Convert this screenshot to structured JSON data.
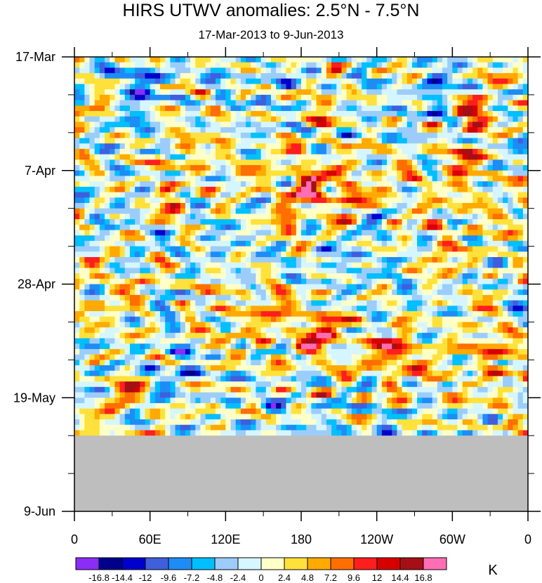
{
  "chart_data": {
    "type": "heatmap",
    "title": "HIRS UTWV anomalies: 2.5°N - 7.5°N",
    "subtitle": "17-Mar-2013 to 9-Jun-2013",
    "x_ticks": [
      "0",
      "60E",
      "120E",
      "180",
      "120W",
      "60W",
      "0"
    ],
    "x_tick_values": [
      0,
      60,
      120,
      180,
      240,
      300,
      360
    ],
    "x_range": [
      0,
      360
    ],
    "y_ticks": [
      "17-Mar",
      "7-Apr",
      "28-Apr",
      "19-May",
      "9-Jun"
    ],
    "y_tick_days": [
      0,
      21,
      42,
      63,
      84
    ],
    "y_range_days": [
      0,
      84
    ],
    "y_start_label": "17-Mar",
    "missing_data_color": "#bebebe",
    "missing_from_day": 70,
    "colorbar": {
      "unit": "K",
      "labels": [
        "-16.8",
        "-14.4",
        "-12",
        "-9.6",
        "-7.2",
        "-4.8",
        "-2.4",
        "0",
        "2.4",
        "4.8",
        "7.2",
        "9.6",
        "12",
        "14.4",
        "16.8"
      ],
      "colors": [
        "#8c2df7",
        "#00008c",
        "#0000cd",
        "#3f5fdc",
        "#1e8cf5",
        "#00bfff",
        "#9ccdfa",
        "#d6f6ff",
        "#ffffc8",
        "#ffe13c",
        "#ffaa00",
        "#ff6e00",
        "#ff1e1e",
        "#d70000",
        "#a50f15",
        "#ff6eb4"
      ]
    },
    "features": [
      {
        "lon": 50,
        "day": 5,
        "value": -12
      },
      {
        "lon": 55,
        "day": 12,
        "value": -9.6
      },
      {
        "lon": 75,
        "day": 28,
        "value": 9.6
      },
      {
        "lon": 30,
        "day": 16,
        "value": -7.2
      },
      {
        "lon": 200,
        "day": 9,
        "value": 9.6
      },
      {
        "lon": 185,
        "day": 24,
        "value": 12
      },
      {
        "lon": 215,
        "day": 26,
        "value": 9.6
      },
      {
        "lon": 170,
        "day": 31,
        "value": 9.6
      },
      {
        "lon": 320,
        "day": 11,
        "value": 16.8
      },
      {
        "lon": 310,
        "day": 19,
        "value": 12
      },
      {
        "lon": 195,
        "day": 51,
        "value": 12
      },
      {
        "lon": 255,
        "day": 55,
        "value": 12
      },
      {
        "lon": 335,
        "day": 53,
        "value": 9.6
      },
      {
        "lon": 40,
        "day": 62,
        "value": 12
      },
      {
        "lon": 75,
        "day": 47,
        "value": -9.6
      },
      {
        "lon": 85,
        "day": 56,
        "value": -7.2
      },
      {
        "lon": 160,
        "day": 46,
        "value": 7.2
      },
      {
        "lon": 320,
        "day": 45,
        "value": 7.2
      },
      {
        "lon": 290,
        "day": 38,
        "value": 9.6
      },
      {
        "lon": 110,
        "day": 65,
        "value": 4.8
      },
      {
        "lon": 240,
        "day": 30,
        "value": -4.8
      },
      {
        "lon": 140,
        "day": 14,
        "value": -4.8
      },
      {
        "lon": 290,
        "day": 4,
        "value": -9.6
      },
      {
        "lon": 220,
        "day": 38,
        "value": -2.4
      }
    ]
  }
}
